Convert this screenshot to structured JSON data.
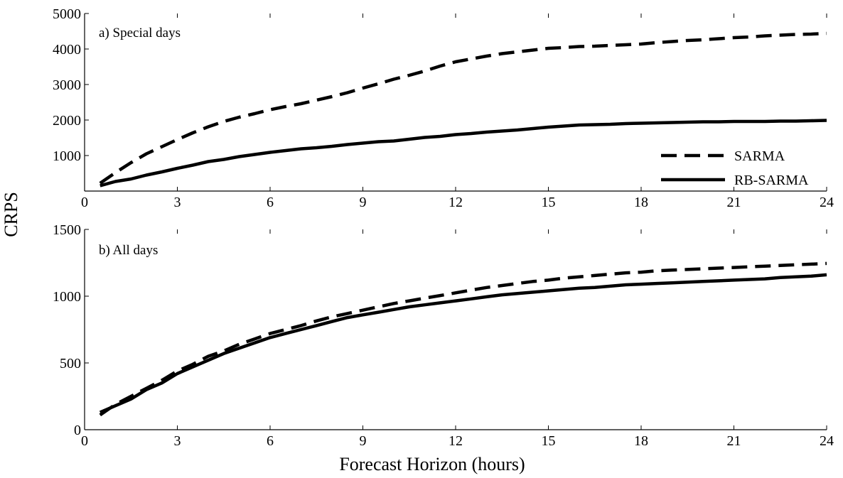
{
  "ylabel": "CRPS",
  "xlabel": "Forecast Horizon (hours)",
  "legend": {
    "placement": "top-right of panel a",
    "entries": [
      {
        "label": "SARMA",
        "style": "dashed"
      },
      {
        "label": "RB-SARMA",
        "style": "solid"
      }
    ]
  },
  "chart_data": [
    {
      "type": "line",
      "title": "a) Special days",
      "xlim": [
        0,
        24
      ],
      "ylim": [
        0,
        5000
      ],
      "x_ticks": [
        0,
        3,
        6,
        9,
        12,
        15,
        18,
        21,
        24
      ],
      "y_ticks": [
        1000,
        2000,
        3000,
        4000,
        5000
      ],
      "x": [
        0.5,
        1,
        1.5,
        2,
        2.5,
        3,
        3.5,
        4,
        4.5,
        5,
        5.5,
        6,
        6.5,
        7,
        7.5,
        8,
        8.5,
        9,
        9.5,
        10,
        10.5,
        11,
        11.5,
        12,
        12.5,
        13,
        13.5,
        14,
        14.5,
        15,
        15.5,
        16,
        16.5,
        17,
        17.5,
        18,
        18.5,
        19,
        19.5,
        20,
        20.5,
        21,
        21.5,
        22,
        22.5,
        23,
        23.5,
        24
      ],
      "series": [
        {
          "name": "SARMA",
          "style": "dashed",
          "values": [
            220,
            520,
            800,
            1050,
            1250,
            1450,
            1640,
            1810,
            1960,
            2080,
            2180,
            2290,
            2380,
            2460,
            2560,
            2660,
            2770,
            2900,
            3020,
            3150,
            3260,
            3380,
            3520,
            3640,
            3720,
            3800,
            3870,
            3920,
            3970,
            4020,
            4040,
            4070,
            4080,
            4100,
            4120,
            4140,
            4180,
            4210,
            4240,
            4260,
            4290,
            4320,
            4340,
            4370,
            4390,
            4410,
            4420,
            4440
          ]
        },
        {
          "name": "RB-SARMA",
          "style": "solid",
          "values": [
            150,
            270,
            340,
            450,
            540,
            640,
            730,
            830,
            890,
            970,
            1030,
            1090,
            1140,
            1190,
            1220,
            1260,
            1310,
            1350,
            1390,
            1410,
            1460,
            1510,
            1540,
            1590,
            1620,
            1660,
            1690,
            1720,
            1760,
            1800,
            1830,
            1860,
            1870,
            1880,
            1900,
            1910,
            1920,
            1930,
            1940,
            1950,
            1950,
            1960,
            1960,
            1960,
            1970,
            1970,
            1980,
            1990
          ]
        }
      ]
    },
    {
      "type": "line",
      "title": "b) All days",
      "xlim": [
        0,
        24
      ],
      "ylim": [
        0,
        1500
      ],
      "x_ticks": [
        0,
        3,
        6,
        9,
        12,
        15,
        18,
        21,
        24
      ],
      "y_ticks": [
        0,
        500,
        1000,
        1500
      ],
      "x": [
        0.5,
        1,
        1.5,
        2,
        2.5,
        3,
        3.5,
        4,
        4.5,
        5,
        5.5,
        6,
        6.5,
        7,
        7.5,
        8,
        8.5,
        9,
        9.5,
        10,
        10.5,
        11,
        11.5,
        12,
        12.5,
        13,
        13.5,
        14,
        14.5,
        15,
        15.5,
        16,
        16.5,
        17,
        17.5,
        18,
        18.5,
        19,
        19.5,
        20,
        20.5,
        21,
        21.5,
        22,
        22.5,
        23,
        23.5,
        24
      ],
      "series": [
        {
          "name": "SARMA",
          "style": "dashed",
          "values": [
            110,
            190,
            250,
            310,
            370,
            440,
            490,
            550,
            590,
            640,
            680,
            720,
            750,
            780,
            815,
            845,
            870,
            895,
            920,
            945,
            965,
            985,
            1005,
            1025,
            1045,
            1065,
            1080,
            1095,
            1110,
            1120,
            1135,
            1145,
            1155,
            1165,
            1175,
            1180,
            1190,
            1195,
            1200,
            1205,
            1210,
            1215,
            1220,
            1225,
            1230,
            1235,
            1240,
            1245
          ]
        },
        {
          "name": "RB-SARMA",
          "style": "solid",
          "values": [
            130,
            180,
            230,
            300,
            350,
            420,
            470,
            520,
            570,
            610,
            650,
            690,
            720,
            750,
            780,
            810,
            840,
            860,
            880,
            900,
            920,
            935,
            950,
            965,
            980,
            995,
            1010,
            1020,
            1030,
            1040,
            1050,
            1060,
            1065,
            1075,
            1085,
            1090,
            1095,
            1100,
            1105,
            1110,
            1115,
            1120,
            1125,
            1130,
            1140,
            1145,
            1150,
            1160
          ]
        }
      ]
    }
  ]
}
